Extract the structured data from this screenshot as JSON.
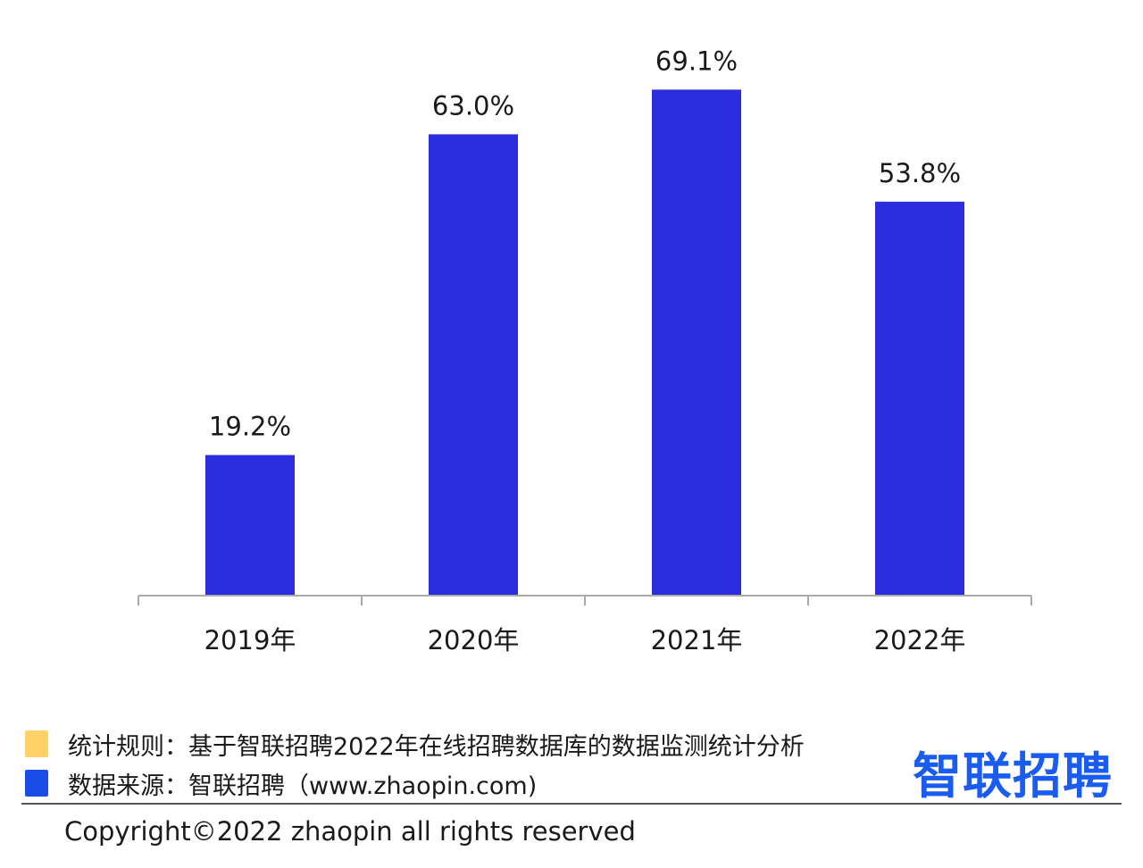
{
  "chart_data": {
    "type": "bar",
    "categories": [
      "2019年",
      "2020年",
      "2021年",
      "2022年"
    ],
    "values": [
      19.2,
      63.0,
      69.1,
      53.8
    ],
    "value_labels": [
      "19.2%",
      "63.0%",
      "69.1%",
      "53.8%"
    ],
    "ylim": [
      0,
      75
    ],
    "grid": false,
    "bar_color": "#2b2ddf",
    "axis_color": "#aaaaaa"
  },
  "footer": {
    "legend": [
      {
        "color": "#ffd166",
        "text": "统计规则：基于智联招聘2022年在线招聘数据库的数据监测统计分析"
      },
      {
        "color": "#1a4de6",
        "text": "数据来源：智联招聘（www.zhaopin.com)"
      }
    ],
    "brand": "智联招聘",
    "brand_color": "#1a5cf0",
    "copyright": "Copyright©2022 zhaopin all rights reserved"
  }
}
